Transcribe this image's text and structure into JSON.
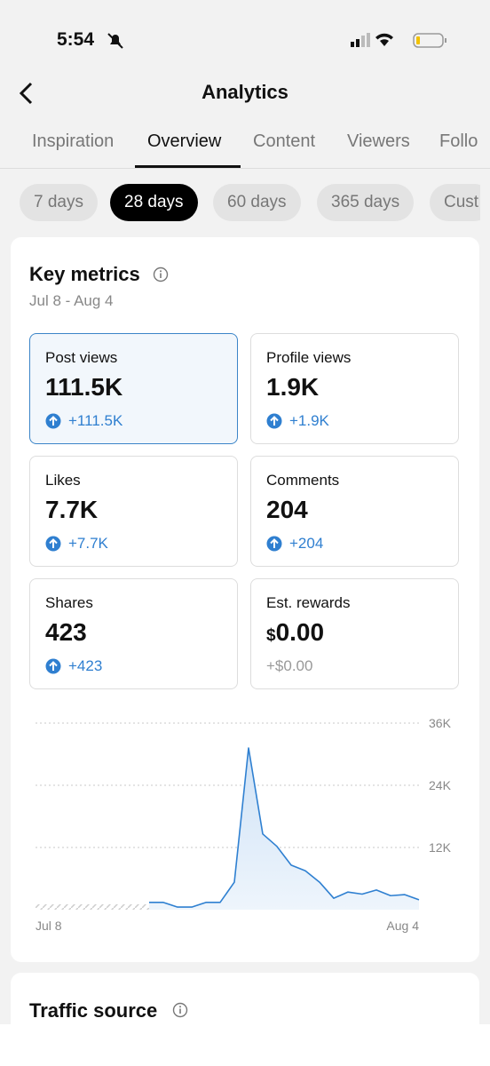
{
  "status_bar": {
    "time": "5:54"
  },
  "header": {
    "title": "Analytics"
  },
  "tabs": [
    {
      "label": "Inspiration",
      "active": false
    },
    {
      "label": "Overview",
      "active": true
    },
    {
      "label": "Content",
      "active": false
    },
    {
      "label": "Viewers",
      "active": false
    },
    {
      "label": "Follo",
      "active": false
    }
  ],
  "ranges": [
    {
      "label": "7 days",
      "active": false
    },
    {
      "label": "28 days",
      "active": true
    },
    {
      "label": "60 days",
      "active": false
    },
    {
      "label": "365 days",
      "active": false
    },
    {
      "label": "Cust",
      "active": false
    }
  ],
  "key_metrics": {
    "title": "Key metrics",
    "date_range": "Jul 8 - Aug 4",
    "metrics": [
      {
        "label": "Post views",
        "value": "111.5K",
        "change": "+111.5K",
        "trend": "up",
        "selected": true
      },
      {
        "label": "Profile views",
        "value": "1.9K",
        "change": "+1.9K",
        "trend": "up",
        "selected": false
      },
      {
        "label": "Likes",
        "value": "7.7K",
        "change": "+7.7K",
        "trend": "up",
        "selected": false
      },
      {
        "label": "Comments",
        "value": "204",
        "change": "+204",
        "trend": "up",
        "selected": false
      },
      {
        "label": "Shares",
        "value": "423",
        "change": "+423",
        "trend": "up",
        "selected": false
      },
      {
        "label": "Est. rewards",
        "prefix": "$",
        "value": "0.00",
        "change": "+$0.00",
        "selected": false
      }
    ],
    "chart": {
      "type": "line",
      "categories": [
        "Jul 8",
        null,
        null,
        null,
        null,
        null,
        null,
        null,
        null,
        null,
        null,
        null,
        null,
        null,
        null,
        null,
        null,
        null,
        null,
        null,
        null,
        null,
        null,
        null,
        null,
        null,
        null,
        "Aug 4"
      ],
      "values": [
        null,
        null,
        null,
        null,
        null,
        null,
        null,
        null,
        1400,
        1400,
        500,
        500,
        1400,
        1400,
        5300,
        31200,
        14600,
        12200,
        8600,
        7500,
        5300,
        2200,
        3400,
        3000,
        3800,
        2700,
        2900,
        1900
      ],
      "color": "#2f80d1",
      "ylim": [
        0,
        36000
      ],
      "yticks": [
        {
          "value": 12000,
          "label": "12K"
        },
        {
          "value": 24000,
          "label": "24K"
        },
        {
          "value": 36000,
          "label": "36K"
        }
      ],
      "grid": true
    }
  },
  "traffic_source": {
    "title": "Traffic source"
  }
}
